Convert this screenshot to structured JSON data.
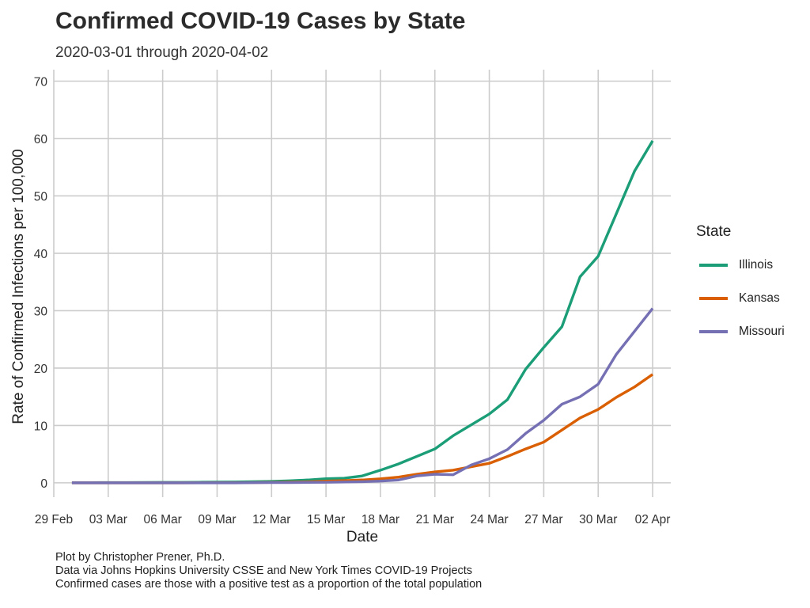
{
  "title": "Confirmed COVID-19 Cases by State",
  "subtitle": "2020-03-01 through 2020-04-02",
  "caption": [
    "Plot by Christopher Prener, Ph.D.",
    "Data via Johns Hopkins University CSSE and New York Times COVID-19 Projects",
    "Confirmed cases are those with a positive test as a proportion of the total population"
  ],
  "legend": {
    "title": "State",
    "position": "right"
  },
  "chart_data": {
    "type": "line",
    "title": "Confirmed COVID-19 Cases by State",
    "subtitle": "2020-03-01 through 2020-04-02",
    "xlabel": "Date",
    "ylabel": "Rate of Confirmed Infections per 100,000",
    "x": [
      "2020-03-01",
      "2020-03-02",
      "2020-03-03",
      "2020-03-04",
      "2020-03-05",
      "2020-03-06",
      "2020-03-07",
      "2020-03-08",
      "2020-03-09",
      "2020-03-10",
      "2020-03-11",
      "2020-03-12",
      "2020-03-13",
      "2020-03-14",
      "2020-03-15",
      "2020-03-16",
      "2020-03-17",
      "2020-03-18",
      "2020-03-19",
      "2020-03-20",
      "2020-03-21",
      "2020-03-22",
      "2020-03-23",
      "2020-03-24",
      "2020-03-25",
      "2020-03-26",
      "2020-03-27",
      "2020-03-28",
      "2020-03-29",
      "2020-03-30",
      "2020-03-31",
      "2020-04-01",
      "2020-04-02"
    ],
    "xlim": [
      "2020-02-29",
      "2020-04-03"
    ],
    "x_ticks": [
      {
        "date": "2020-02-29",
        "label": "29 Feb"
      },
      {
        "date": "2020-03-03",
        "label": "03 Mar"
      },
      {
        "date": "2020-03-06",
        "label": "06 Mar"
      },
      {
        "date": "2020-03-09",
        "label": "09 Mar"
      },
      {
        "date": "2020-03-12",
        "label": "12 Mar"
      },
      {
        "date": "2020-03-15",
        "label": "15 Mar"
      },
      {
        "date": "2020-03-18",
        "label": "18 Mar"
      },
      {
        "date": "2020-03-21",
        "label": "21 Mar"
      },
      {
        "date": "2020-03-24",
        "label": "24 Mar"
      },
      {
        "date": "2020-03-27",
        "label": "27 Mar"
      },
      {
        "date": "2020-03-30",
        "label": "30 Mar"
      },
      {
        "date": "2020-04-02",
        "label": "02 Apr"
      }
    ],
    "ylim": [
      -2.5,
      72
    ],
    "y_ticks": [
      0,
      10,
      20,
      30,
      40,
      50,
      60,
      70
    ],
    "grid": true,
    "legend_position": "right",
    "series": [
      {
        "name": "Illinois",
        "color": "#1b9e77",
        "values": [
          0.02,
          0.03,
          0.04,
          0.05,
          0.06,
          0.07,
          0.08,
          0.1,
          0.12,
          0.15,
          0.2,
          0.25,
          0.35,
          0.5,
          0.72,
          0.8,
          1.2,
          2.2,
          3.3,
          4.6,
          5.9,
          8.2,
          10.1,
          12.0,
          14.5,
          19.8,
          23.6,
          27.2,
          35.9,
          39.5,
          46.9,
          54.3,
          59.6
        ]
      },
      {
        "name": "Kansas",
        "color": "#d95f02",
        "values": [
          0,
          0,
          0,
          0,
          0,
          0,
          0,
          0.01,
          0.02,
          0.03,
          0.05,
          0.08,
          0.12,
          0.18,
          0.3,
          0.38,
          0.5,
          0.7,
          1.0,
          1.5,
          1.9,
          2.2,
          2.8,
          3.4,
          4.6,
          5.9,
          7.1,
          9.2,
          11.3,
          12.8,
          14.9,
          16.7,
          18.9
        ]
      },
      {
        "name": "Missouri",
        "color": "#7570b3",
        "values": [
          0,
          0,
          0,
          0,
          0,
          0,
          0,
          0,
          0,
          0,
          0.02,
          0.04,
          0.05,
          0.08,
          0.1,
          0.15,
          0.2,
          0.3,
          0.5,
          1.2,
          1.5,
          1.4,
          3.1,
          4.2,
          5.8,
          8.6,
          10.9,
          13.7,
          15.0,
          17.2,
          22.4,
          26.4,
          30.4
        ]
      }
    ]
  }
}
